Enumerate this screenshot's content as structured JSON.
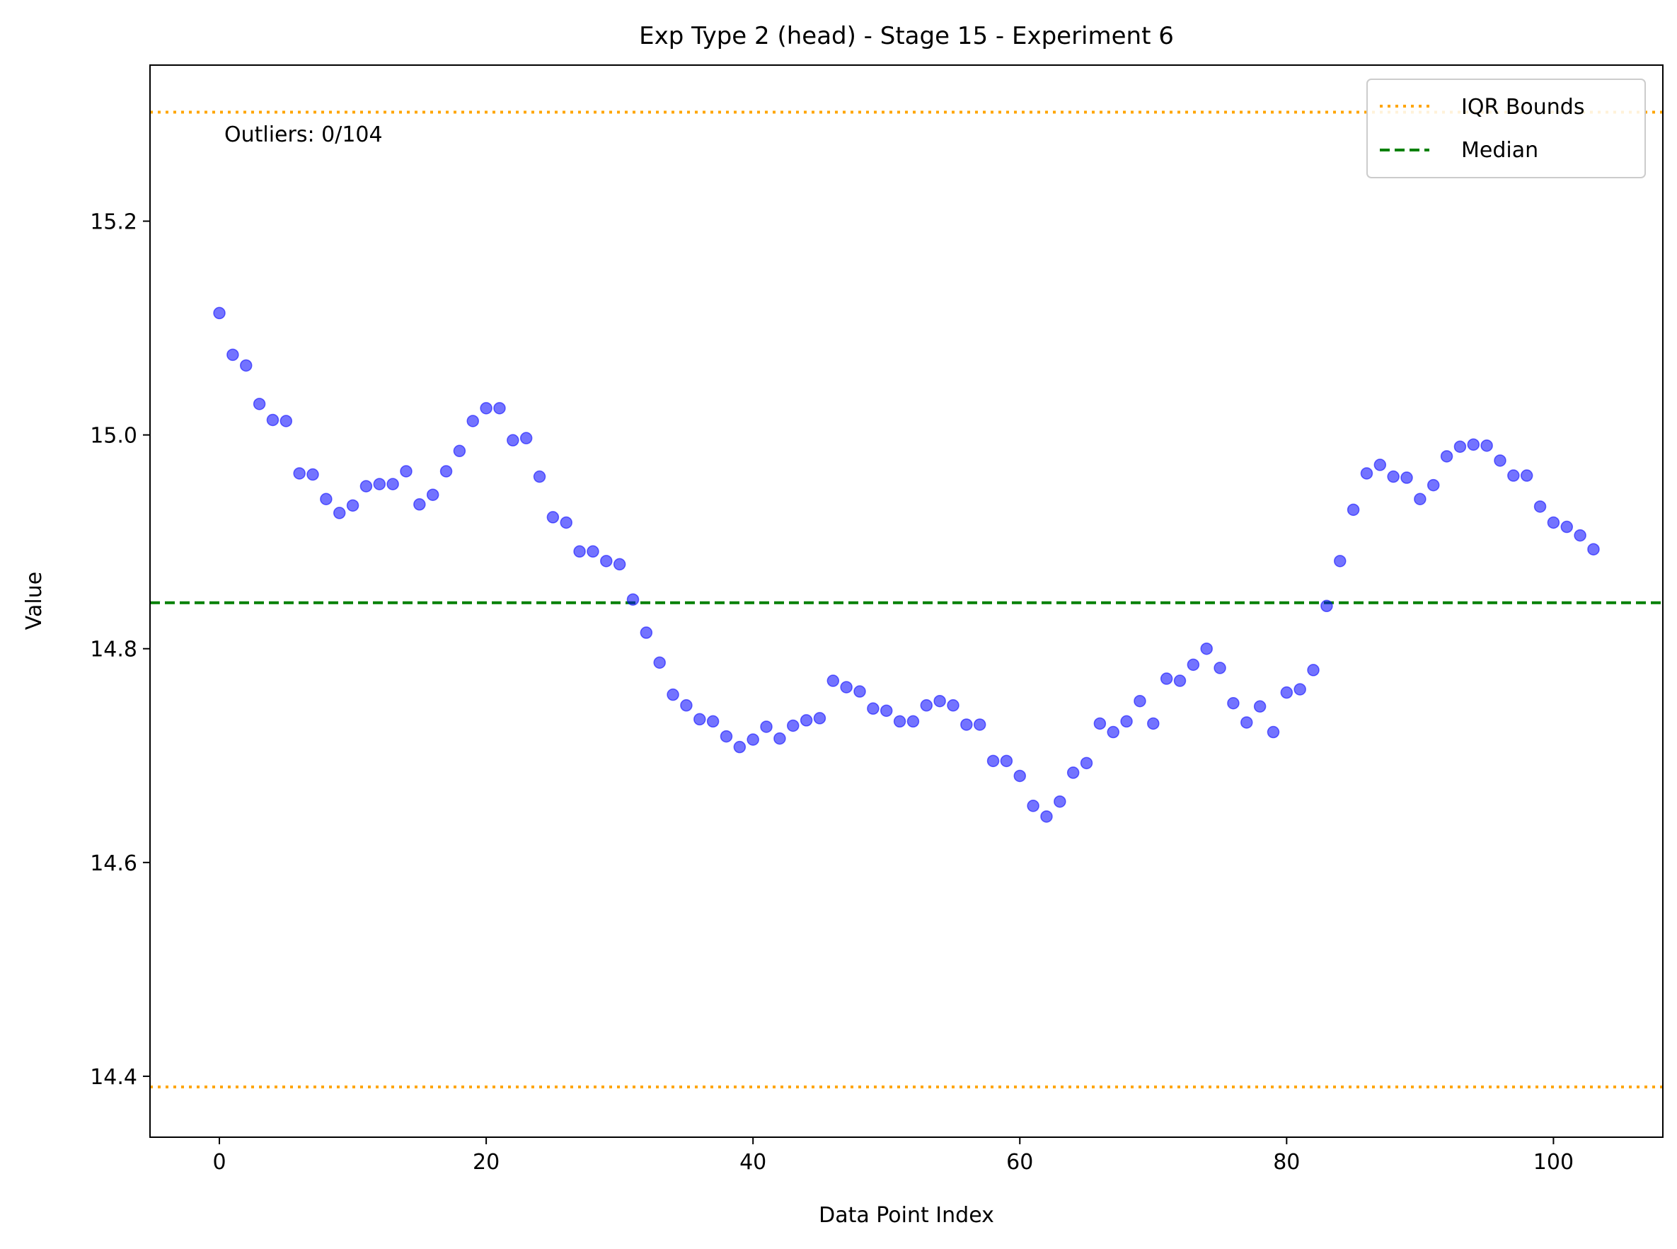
{
  "chart_data": {
    "type": "scatter",
    "title": "Exp Type 2 (head) - Stage 15 - Experiment 6",
    "xlabel": "Data Point Index",
    "ylabel": "Value",
    "xlim": [
      -5.2,
      108.2
    ],
    "ylim": [
      14.343,
      15.346
    ],
    "xticks": [
      0,
      20,
      40,
      60,
      80,
      100
    ],
    "yticks": [
      14.4,
      14.6,
      14.8,
      15.0,
      15.2
    ],
    "ytick_labels": [
      "14.4",
      "14.6",
      "14.8",
      "15.0",
      "15.2"
    ],
    "grid": false,
    "legend_position": "top-right",
    "annotation": "Outliers: 0/104",
    "series": [
      {
        "color": "#0000ff",
        "x": [
          0,
          1,
          2,
          3,
          4,
          5,
          6,
          7,
          8,
          9,
          10,
          11,
          12,
          13,
          14,
          15,
          16,
          17,
          18,
          19,
          20,
          21,
          22,
          23,
          24,
          25,
          26,
          27,
          28,
          29,
          30,
          31,
          32,
          33,
          34,
          35,
          36,
          37,
          38,
          39,
          40,
          41,
          42,
          43,
          44,
          45,
          46,
          47,
          48,
          49,
          50,
          51,
          52,
          53,
          54,
          55,
          56,
          57,
          58,
          59,
          60,
          61,
          62,
          63,
          64,
          65,
          66,
          67,
          68,
          69,
          70,
          71,
          72,
          73,
          74,
          75,
          76,
          77,
          78,
          79,
          80,
          81,
          82,
          83,
          84,
          85,
          86,
          87,
          88,
          89,
          90,
          91,
          92,
          93,
          94,
          95,
          96,
          97,
          98,
          99,
          100,
          101,
          102,
          103
        ],
        "y": [
          15.114,
          15.075,
          15.065,
          15.029,
          15.014,
          15.013,
          14.964,
          14.963,
          14.94,
          14.927,
          14.934,
          14.952,
          14.954,
          14.954,
          14.966,
          14.935,
          14.944,
          14.966,
          14.985,
          15.013,
          15.025,
          15.025,
          14.995,
          14.997,
          14.961,
          14.923,
          14.918,
          14.891,
          14.891,
          14.882,
          14.879,
          14.846,
          14.815,
          14.787,
          14.757,
          14.747,
          14.734,
          14.732,
          14.718,
          14.708,
          14.715,
          14.727,
          14.716,
          14.728,
          14.733,
          14.735,
          14.77,
          14.764,
          14.76,
          14.744,
          14.742,
          14.732,
          14.732,
          14.747,
          14.751,
          14.747,
          14.729,
          14.729,
          14.695,
          14.695,
          14.681,
          14.653,
          14.643,
          14.657,
          14.684,
          14.693,
          14.73,
          14.722,
          14.732,
          14.751,
          14.73,
          14.772,
          14.77,
          14.785,
          14.8,
          14.782,
          14.749,
          14.731,
          14.746,
          14.722,
          14.759,
          14.762,
          14.78,
          14.84,
          14.882,
          14.93,
          14.964,
          14.972,
          14.961,
          14.96,
          14.94,
          14.953,
          14.98,
          14.989,
          14.991,
          14.99,
          14.976,
          14.962,
          14.962,
          14.933,
          14.918,
          14.914,
          14.906,
          14.893
        ]
      }
    ],
    "hlines": [
      {
        "name": "IQR Bounds",
        "y": 15.302,
        "color": "#ffa500",
        "style": "dotted"
      },
      {
        "name": "IQR Bounds",
        "y": 14.39,
        "color": "#ffa500",
        "style": "dotted"
      },
      {
        "name": "Median",
        "y": 14.843,
        "color": "#008000",
        "style": "dashed"
      }
    ],
    "legend": [
      {
        "label": "IQR Bounds",
        "color": "#ffa500",
        "style": "dotted"
      },
      {
        "label": "Median",
        "color": "#008000",
        "style": "dashed"
      }
    ]
  }
}
